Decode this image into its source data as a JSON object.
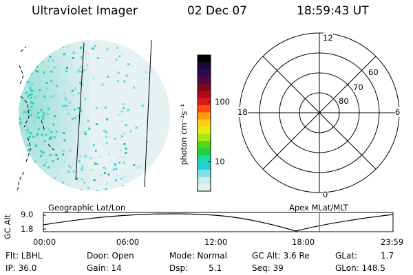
{
  "header": {
    "instrument": "Ultraviolet Imager",
    "date": "02 Dec 07",
    "time": "18:59:43 UT"
  },
  "colorbar": {
    "label": "photon cm⁻²s⁻¹",
    "ticks": [
      "100",
      "10"
    ],
    "colors": [
      "#000000",
      "#1a0a3a",
      "#2a0a50",
      "#500a40",
      "#7a0a1a",
      "#b00a1a",
      "#d81a1a",
      "#ff4a10",
      "#ff9a10",
      "#ffd010",
      "#e8ee10",
      "#a8e810",
      "#50d818",
      "#20d040",
      "#20d8a0",
      "#20d0d8",
      "#80e0e8",
      "#c8ecec",
      "#e4f0f0"
    ]
  },
  "polar": {
    "labels": {
      "top": "12",
      "left": "18",
      "right": "6",
      "bottom": "0"
    },
    "rings": [
      "80",
      "70",
      "60"
    ]
  },
  "altplot": {
    "ylabel": "GC Alt",
    "yticks": [
      "9.0",
      "1.8"
    ],
    "left_title": "Geographic Lat/Lon",
    "right_title": "Apex MLat/MLT",
    "xticks": [
      "00:00",
      "06:00",
      "12:00",
      "18:00",
      "23:59"
    ]
  },
  "info": {
    "flt": "Flt: LBHL",
    "door": "Door: Open",
    "mode": "Mode: Normal",
    "gcalt": "GC Alt: 3.6 Re",
    "glat_label": "GLat:",
    "glat_val": "1.7",
    "ip": "IP: 36.0",
    "gain": "Gain: 14",
    "dsp_label": "Dsp:",
    "dsp_val": "5.1",
    "seq": "Seq: 39",
    "glon": "GLon: 148.5"
  },
  "colors": {
    "time_marker": "#d03030"
  }
}
